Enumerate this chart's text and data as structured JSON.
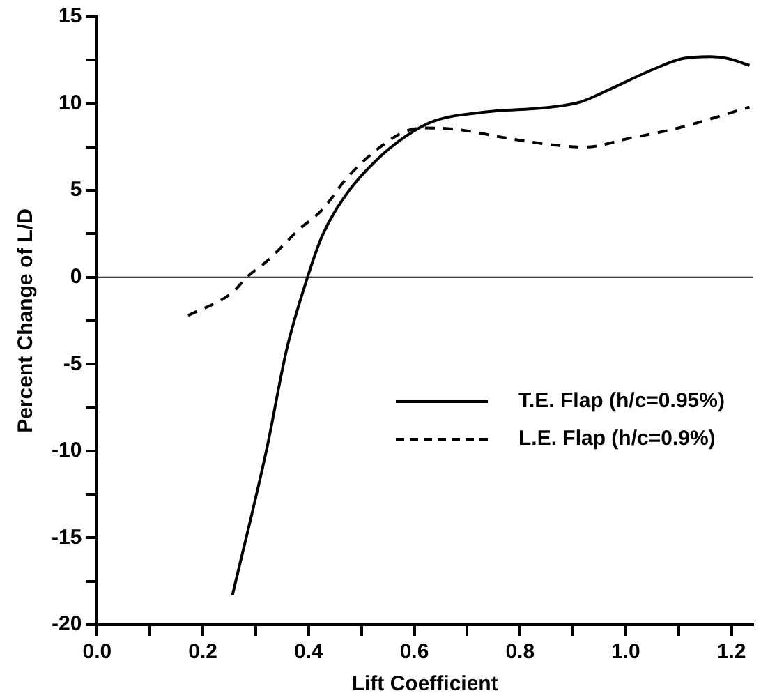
{
  "chart_data": {
    "type": "line",
    "xlabel": "Lift Coefficient",
    "ylabel": "Percent Change of L/D",
    "xlim": [
      0,
      1.24
    ],
    "ylim": [
      -20,
      15
    ],
    "xticks": [
      {
        "value": 0,
        "label": "0.0"
      },
      {
        "value": 0.1,
        "label": null
      },
      0.2,
      {
        "value": 0.3,
        "label": null
      },
      0.4,
      {
        "value": 0.5,
        "label": null
      },
      0.6,
      {
        "value": 0.7,
        "label": null
      },
      0.8,
      {
        "value": 0.9,
        "label": null
      },
      {
        "value": 1,
        "label": "1.0"
      },
      {
        "value": 1.1,
        "label": null
      },
      1.2
    ],
    "yticks": [
      -20,
      {
        "value": -17.5,
        "label": null
      },
      -15,
      {
        "value": -12.5,
        "label": null
      },
      -10,
      {
        "value": -7.5,
        "label": null
      },
      -5,
      {
        "value": -2.5,
        "label": null
      },
      0,
      {
        "value": 2.5,
        "label": null
      },
      5,
      {
        "value": 7.5,
        "label": null
      },
      10,
      {
        "value": 12.5,
        "label": null
      },
      15
    ],
    "grid": false,
    "legend": "bottom right",
    "marker": "none",
    "ref_lines": [
      {
        "axis": "y",
        "value": 0,
        "color": "#000000"
      }
    ],
    "series": [
      {
        "name": "T.E. Flap (h/c=0.95%)",
        "color": "#000000",
        "line_style": "solid",
        "x": [
          0.256,
          0.32,
          0.359,
          0.398,
          0.426,
          0.472,
          0.527,
          0.583,
          0.638,
          0.73,
          0.86,
          0.915,
          0.961,
          1.054,
          1.109,
          1.16,
          1.192,
          1.234
        ],
        "values": [
          -18.3,
          -10,
          -4.1,
          0,
          2.4,
          4.8,
          6.7,
          8.1,
          9.0,
          9.5,
          9.8,
          10.1,
          10.7,
          12.0,
          12.6,
          12.7,
          12.6,
          12.2
        ]
      },
      {
        "name": "L.E. Flap (h/c=0.9%)",
        "color": "#000000",
        "line_style": "dashed",
        "x": [
          0.172,
          0.255,
          0.283,
          0.324,
          0.38,
          0.426,
          0.472,
          0.527,
          0.583,
          0.62,
          0.684,
          0.777,
          0.869,
          0.924,
          1.007,
          1.1,
          1.234
        ],
        "values": [
          -2.2,
          -0.9,
          0,
          1.0,
          2.7,
          3.9,
          5.7,
          7.3,
          8.4,
          8.6,
          8.5,
          8.0,
          7.6,
          7.5,
          8.0,
          8.6,
          9.8
        ]
      }
    ]
  }
}
